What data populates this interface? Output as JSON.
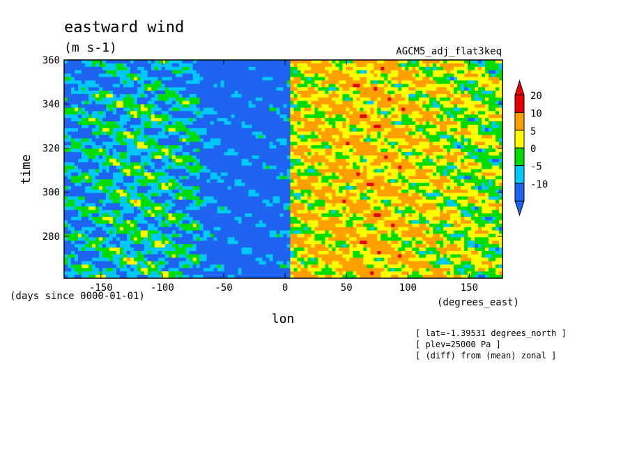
{
  "chart_data": {
    "type": "heatmap",
    "title": "eastward wind",
    "units": "(m s-1)",
    "experiment": "AGCM5_adj_flat3keq",
    "xlabel": "lon",
    "ylabel": "time",
    "x_units": "(degrees_east)",
    "y_units": "(days since 0000-01-01)",
    "xlim": [
      -180,
      177
    ],
    "ylim": [
      261,
      360
    ],
    "x_ticks": [
      {
        "value": -150,
        "label": "-150"
      },
      {
        "value": -100,
        "label": "-100"
      },
      {
        "value": -50,
        "label": "-50"
      },
      {
        "value": 0,
        "label": "0"
      },
      {
        "value": 50,
        "label": "50"
      },
      {
        "value": 100,
        "label": "100"
      },
      {
        "value": 150,
        "label": "150"
      }
    ],
    "y_ticks": [
      {
        "value": 280,
        "label": "280"
      },
      {
        "value": 300,
        "label": "300"
      },
      {
        "value": 320,
        "label": "320"
      },
      {
        "value": 340,
        "label": "340"
      },
      {
        "value": 360,
        "label": "360"
      }
    ],
    "colorbar": {
      "levels": [
        -10,
        -5,
        0,
        5,
        10,
        20
      ],
      "labels": [
        "-10",
        "-5",
        "0",
        "5",
        "10",
        "20"
      ],
      "colors": [
        "#1e64f0",
        "#00c8ff",
        "#00dc00",
        "#ffff00",
        "#ffa000",
        "#e60000"
      ],
      "extend": "both"
    },
    "annotations": [
      "[ lat=-1.39531 degrees_north ]",
      "[ plev=25000 Pa ]",
      "[ (diff) from (mean) zonal ]"
    ]
  }
}
